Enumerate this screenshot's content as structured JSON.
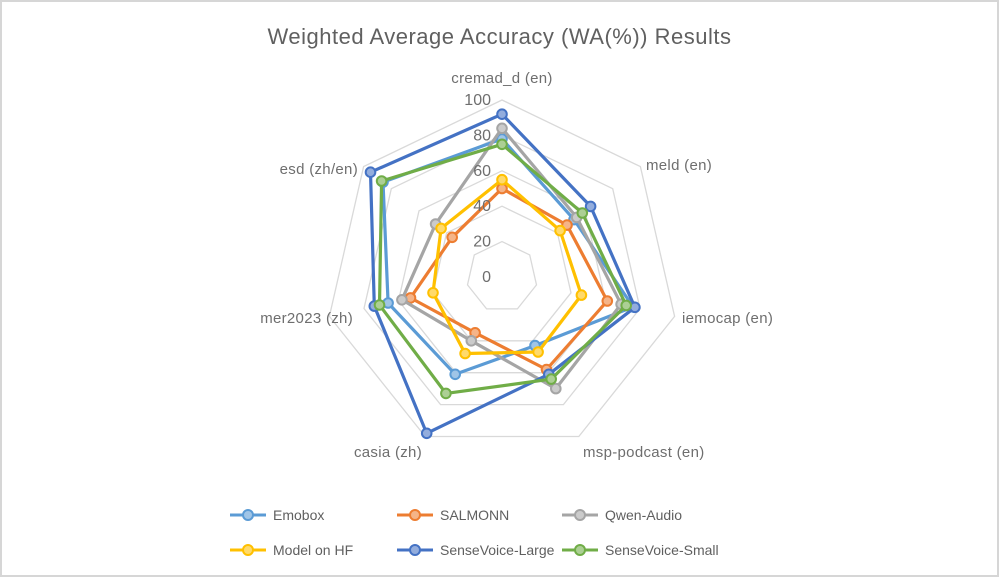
{
  "window": {
    "background": "#ffffff",
    "border_color": "#d6d6d6"
  },
  "chart_data": {
    "type": "radar",
    "title": "Weighted Average Accuracy (WA(%)) Results",
    "categories": [
      "cremad_d (en)",
      "meld (en)",
      "iemocap (en)",
      "msp-podcast (en)",
      "casia (zh)",
      "mer2023 (zh)",
      "esd  (zh/en)"
    ],
    "radial_ticks": [
      0,
      20,
      40,
      60,
      80,
      100
    ],
    "grid_levels": [
      20,
      40,
      60,
      80,
      100
    ],
    "axis_range": [
      0,
      100
    ],
    "grid_on": true,
    "grid_color": "#d9d9d9",
    "legend_position": "bottom",
    "series": [
      {
        "name": "Emobox",
        "color": "#5B9BD5",
        "values": [
          78,
          52,
          76,
          43,
          61,
          66,
          86
        ]
      },
      {
        "name": "SALMONN",
        "color": "#ED7D31",
        "values": [
          50,
          47,
          61,
          58,
          35,
          53,
          36
        ]
      },
      {
        "name": "Qwen-Audio",
        "color": "#A5A5A5",
        "values": [
          84,
          54,
          69,
          70,
          40,
          58,
          48
        ]
      },
      {
        "name": "Model on HF",
        "color": "#FFC000",
        "values": [
          55,
          42,
          46,
          47,
          48,
          40,
          44
        ]
      },
      {
        "name": "SenseVoice-Large",
        "color": "#4472C4",
        "values": [
          92,
          64,
          77,
          61,
          98,
          74,
          95
        ]
      },
      {
        "name": "SenseVoice-Small",
        "color": "#70AD47",
        "values": [
          75,
          58,
          72,
          64,
          73,
          71,
          87
        ]
      }
    ]
  },
  "text_colors": {
    "title": "#606060",
    "labels": "#6e6e6e"
  }
}
